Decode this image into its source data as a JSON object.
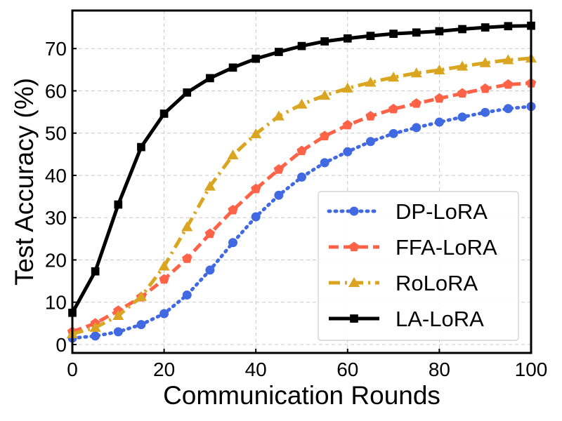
{
  "chart_data": {
    "type": "line",
    "title": "",
    "xlabel": "Communication Rounds",
    "ylabel": "Test Accuracy (%)",
    "xlim": [
      0,
      100
    ],
    "ylim": [
      -2,
      79
    ],
    "xticks": [
      0,
      20,
      40,
      60,
      80,
      100
    ],
    "yticks": [
      0,
      10,
      20,
      30,
      40,
      50,
      60,
      70
    ],
    "grid": true,
    "legend_position": "bottom-right",
    "x": [
      0,
      5,
      10,
      15,
      20,
      25,
      30,
      35,
      40,
      45,
      50,
      55,
      60,
      65,
      70,
      75,
      80,
      85,
      90,
      95,
      100
    ],
    "series": [
      {
        "name": "DP-LoRA",
        "color": "#4169E1",
        "line_style": "dotted",
        "marker": "circle",
        "values": [
          1.5,
          2.0,
          3.0,
          4.7,
          7.3,
          11.7,
          17.6,
          24.1,
          30.2,
          35.3,
          39.6,
          43.0,
          45.6,
          48.0,
          49.9,
          51.3,
          52.6,
          53.8,
          54.9,
          55.8,
          56.3
        ]
      },
      {
        "name": "FFA-LoRA",
        "color": "#FF6347",
        "line_style": "dashed",
        "marker": "pentagon",
        "values": [
          3.0,
          5.0,
          8.0,
          11.2,
          15.4,
          20.3,
          26.2,
          31.8,
          36.8,
          41.4,
          45.8,
          49.3,
          51.9,
          54.0,
          55.7,
          57.0,
          58.2,
          59.4,
          60.5,
          61.5,
          61.8
        ]
      },
      {
        "name": "RoLoRA",
        "color": "#DAA520",
        "line_style": "dashdot",
        "marker": "triangle",
        "values": [
          2.5,
          4.0,
          6.8,
          11.3,
          18.5,
          27.8,
          37.4,
          44.8,
          49.8,
          54.0,
          56.8,
          58.9,
          60.6,
          62.0,
          63.2,
          64.2,
          64.9,
          65.8,
          66.6,
          67.3,
          67.7
        ]
      },
      {
        "name": "LA-LoRA",
        "color": "#000000",
        "line_style": "solid",
        "marker": "square",
        "values": [
          7.5,
          17.3,
          33.1,
          46.7,
          54.6,
          59.6,
          63.0,
          65.5,
          67.6,
          69.2,
          70.6,
          71.7,
          72.4,
          73.0,
          73.5,
          73.8,
          74.1,
          74.6,
          75.0,
          75.3,
          75.4
        ]
      }
    ]
  }
}
